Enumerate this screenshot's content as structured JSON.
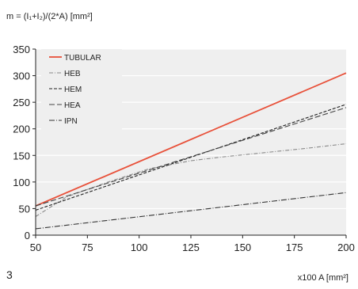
{
  "chart_data": {
    "type": "line",
    "title": "m = (I₁+I₂)/(2*A) [mm²]",
    "xlabel": "x100 A [mm²]",
    "ylabel": "",
    "corner_label": "3",
    "xlim": [
      50,
      200
    ],
    "ylim": [
      0,
      350
    ],
    "xticks": [
      50,
      75,
      100,
      125,
      150,
      175,
      200
    ],
    "yticks": [
      0,
      50,
      100,
      150,
      200,
      250,
      300,
      350
    ],
    "grid": "horizontal",
    "legend_position": "top-left",
    "series": [
      {
        "name": "TUBULAR",
        "color": "#e8513a",
        "dash": "solid",
        "x": [
          50,
          200
        ],
        "y": [
          55,
          305
        ]
      },
      {
        "name": "HEB",
        "color": "#8a8a8a",
        "dash": "dashdot-light",
        "x": [
          50,
          65,
          85,
          105,
          125,
          140,
          160,
          180,
          200
        ],
        "y": [
          35,
          72,
          100,
          125,
          140,
          147,
          155,
          163,
          172
        ]
      },
      {
        "name": "HEM",
        "color": "#222222",
        "dash": "dashed",
        "x": [
          50,
          200
        ],
        "y": [
          47,
          246
        ]
      },
      {
        "name": "HEA",
        "color": "#444444",
        "dash": "long-dash",
        "x": [
          50,
          200
        ],
        "y": [
          55,
          240
        ]
      },
      {
        "name": "IPN",
        "color": "#333333",
        "dash": "dashdot",
        "x": [
          50,
          200
        ],
        "y": [
          12,
          80
        ]
      }
    ]
  }
}
